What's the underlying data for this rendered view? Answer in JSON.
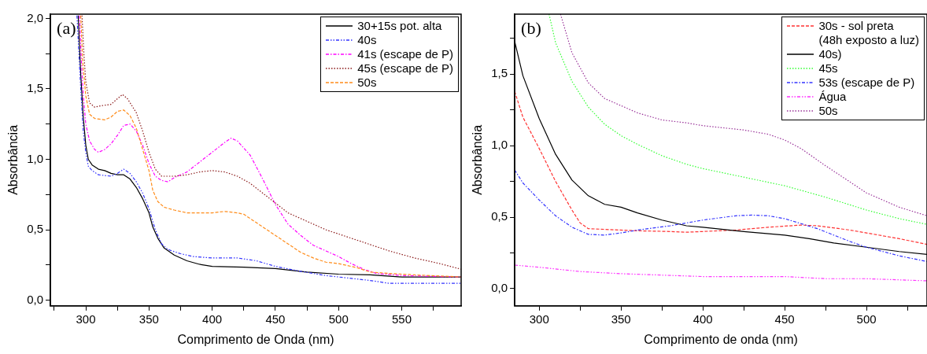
{
  "chart_data": [
    {
      "type": "line",
      "annotations": [
        "(a)"
      ],
      "xlabel": "Comprimento de Onda (nm)",
      "ylabel": "Absorbância",
      "xlim": [
        272,
        597
      ],
      "ylim": [
        -0.04,
        2.03
      ],
      "xticks": [
        {
          "value": 275,
          "label": null
        },
        300,
        {
          "value": 325,
          "label": null
        },
        350,
        {
          "value": 375,
          "label": null
        },
        400,
        {
          "value": 425,
          "label": null
        },
        450,
        {
          "value": 475,
          "label": null
        },
        500,
        {
          "value": 525,
          "label": null
        },
        550,
        {
          "value": 575,
          "label": null
        }
      ],
      "yticks": [
        {
          "value": 0,
          "label": "0,0"
        },
        {
          "value": 0.25,
          "label": null
        },
        {
          "value": 0.5,
          "label": "0,5"
        },
        {
          "value": 0.75,
          "label": null
        },
        {
          "value": 1,
          "label": "1,0"
        },
        {
          "value": 1.25,
          "label": null
        },
        {
          "value": 1.5,
          "label": "1,5"
        },
        {
          "value": 1.75,
          "label": null
        },
        {
          "value": 2,
          "label": "2,0"
        }
      ],
      "grid": false,
      "legend": "top right",
      "marker": "none",
      "series": [
        {
          "name": "30+15s pot. alta",
          "color": "#000000",
          "line_style": "solid",
          "x": [
            294,
            296,
            298,
            300,
            302,
            305,
            310,
            315,
            320,
            325,
            330,
            335,
            340,
            345,
            350,
            353,
            357,
            362,
            370,
            380,
            390,
            400,
            425,
            450,
            475,
            500,
            525,
            550,
            597
          ],
          "values": [
            2.02,
            1.6,
            1.3,
            1.1,
            1.0,
            0.96,
            0.93,
            0.92,
            0.9,
            0.89,
            0.89,
            0.86,
            0.8,
            0.72,
            0.62,
            0.52,
            0.44,
            0.37,
            0.32,
            0.28,
            0.255,
            0.24,
            0.235,
            0.225,
            0.2,
            0.185,
            0.18,
            0.165,
            0.165
          ]
        },
        {
          "name": "40s",
          "color": "#3333ff",
          "line_style": "dashdotdot",
          "x": [
            293,
            296,
            298,
            300,
            302,
            305,
            310,
            320,
            325,
            330,
            335,
            340,
            345,
            350,
            355,
            360,
            365,
            375,
            385,
            400,
            420,
            435,
            450,
            470,
            490,
            500,
            525,
            540,
            597
          ],
          "values": [
            2.02,
            1.5,
            1.2,
            1.05,
            0.95,
            0.92,
            0.89,
            0.88,
            0.9,
            0.93,
            0.9,
            0.84,
            0.76,
            0.65,
            0.5,
            0.4,
            0.36,
            0.33,
            0.31,
            0.3,
            0.3,
            0.28,
            0.24,
            0.205,
            0.175,
            0.165,
            0.14,
            0.12,
            0.12
          ]
        },
        {
          "name": "41s (escape de P)",
          "color": "#ff00ff",
          "line_style": "dashdot",
          "x": [
            295,
            296.5,
            298,
            300,
            303,
            307,
            310,
            315,
            320,
            325,
            330,
            335,
            340,
            345,
            350,
            355,
            360,
            365,
            370,
            380,
            390,
            400,
            410,
            415,
            420,
            430,
            440,
            450,
            460,
            470,
            480,
            490,
            500,
            510,
            520,
            530,
            550,
            570,
            597
          ],
          "values": [
            2.02,
            1.7,
            1.45,
            1.25,
            1.13,
            1.07,
            1.05,
            1.07,
            1.11,
            1.17,
            1.24,
            1.25,
            1.2,
            1.1,
            0.97,
            0.88,
            0.85,
            0.84,
            0.87,
            0.91,
            0.98,
            1.05,
            1.12,
            1.15,
            1.13,
            1.03,
            0.86,
            0.68,
            0.54,
            0.46,
            0.39,
            0.35,
            0.31,
            0.26,
            0.22,
            0.19,
            0.175,
            0.17,
            0.165
          ]
        },
        {
          "name": "45s (escape de P)",
          "color": "#8b1a1a",
          "line_style": "dotted",
          "x": [
            297,
            298.5,
            300,
            303,
            307,
            312,
            320,
            325,
            329,
            333,
            340,
            345,
            350,
            355,
            360,
            370,
            380,
            390,
            400,
            410,
            420,
            430,
            440,
            450,
            460,
            470,
            480,
            490,
            500,
            520,
            540,
            560,
            580,
            597
          ],
          "values": [
            2.02,
            1.75,
            1.55,
            1.4,
            1.37,
            1.38,
            1.39,
            1.43,
            1.46,
            1.43,
            1.33,
            1.2,
            1.05,
            0.93,
            0.88,
            0.88,
            0.89,
            0.91,
            0.92,
            0.91,
            0.88,
            0.83,
            0.76,
            0.69,
            0.62,
            0.58,
            0.54,
            0.5,
            0.47,
            0.41,
            0.35,
            0.3,
            0.26,
            0.22
          ]
        },
        {
          "name": "50s",
          "color": "#ff8c1a",
          "line_style": "dashed",
          "x": [
            296,
            297.5,
            300,
            303,
            307,
            315,
            320,
            325,
            330,
            335,
            340,
            345,
            350,
            353,
            357,
            362,
            370,
            380,
            400,
            410,
            420,
            425,
            435,
            450,
            460,
            470,
            480,
            490,
            500,
            515,
            525,
            540,
            560,
            597
          ],
          "values": [
            2.02,
            1.7,
            1.45,
            1.32,
            1.29,
            1.28,
            1.3,
            1.34,
            1.35,
            1.31,
            1.22,
            1.07,
            0.92,
            0.78,
            0.7,
            0.66,
            0.64,
            0.62,
            0.62,
            0.63,
            0.62,
            0.61,
            0.55,
            0.46,
            0.4,
            0.34,
            0.3,
            0.27,
            0.26,
            0.23,
            0.2,
            0.19,
            0.18,
            0.165
          ]
        }
      ]
    },
    {
      "type": "line",
      "annotations": [
        "(b)"
      ],
      "xlabel": "Comprimento de onda (nm)",
      "ylabel": "Absorbância",
      "xlim": [
        285,
        537
      ],
      "ylim": [
        -0.12,
        1.92
      ],
      "xticks": [
        300,
        {
          "value": 325,
          "label": null
        },
        350,
        {
          "value": 375,
          "label": null
        },
        400,
        {
          "value": 425,
          "label": null
        },
        450,
        {
          "value": 475,
          "label": null
        },
        500,
        {
          "value": 525,
          "label": null
        }
      ],
      "yticks": [
        {
          "value": 0,
          "label": "0,0"
        },
        {
          "value": 0.25,
          "label": null
        },
        {
          "value": 0.5,
          "label": "0,5"
        },
        {
          "value": 0.75,
          "label": null
        },
        {
          "value": 1,
          "label": "1,0"
        },
        {
          "value": 1.25,
          "label": null
        },
        {
          "value": 1.5,
          "label": "1,5"
        },
        {
          "value": 1.75,
          "label": null
        }
      ],
      "grid": false,
      "legend": "top right",
      "marker": "none",
      "series": [
        {
          "name": "30s - sol preta\n(48h exposto a luz)",
          "color": "#ff3333",
          "line_style": "dashed",
          "x": [
            285,
            290,
            300,
            310,
            320,
            325,
            330,
            340,
            360,
            380,
            390,
            400,
            420,
            440,
            460,
            470,
            490,
            500,
            520,
            537
          ],
          "values": [
            1.38,
            1.2,
            0.98,
            0.75,
            0.55,
            0.46,
            0.42,
            0.415,
            0.405,
            0.4,
            0.395,
            0.4,
            0.41,
            0.43,
            0.445,
            0.44,
            0.41,
            0.39,
            0.35,
            0.31
          ]
        },
        {
          "name": "40s)",
          "color": "#000000",
          "line_style": "solid",
          "x": [
            285,
            290,
            300,
            310,
            320,
            330,
            340,
            350,
            360,
            375,
            390,
            400,
            425,
            450,
            465,
            480,
            500,
            520,
            537
          ],
          "values": [
            1.73,
            1.49,
            1.19,
            0.94,
            0.76,
            0.65,
            0.59,
            0.57,
            0.53,
            0.48,
            0.44,
            0.43,
            0.4,
            0.375,
            0.35,
            0.32,
            0.29,
            0.26,
            0.24
          ]
        },
        {
          "name": "45s",
          "color": "#33ff33",
          "line_style": "dotted",
          "x": [
            306,
            310,
            320,
            330,
            340,
            350,
            360,
            375,
            390,
            400,
            425,
            450,
            475,
            500,
            520,
            537
          ],
          "values": [
            1.92,
            1.72,
            1.45,
            1.27,
            1.15,
            1.07,
            1.01,
            0.93,
            0.87,
            0.84,
            0.78,
            0.72,
            0.64,
            0.55,
            0.49,
            0.45
          ]
        },
        {
          "name": "53s (escape de P)",
          "color": "#3333ff",
          "line_style": "dashdot",
          "x": [
            285,
            290,
            300,
            310,
            320,
            330,
            340,
            350,
            360,
            380,
            400,
            420,
            430,
            440,
            450,
            460,
            470,
            480,
            490,
            500,
            520,
            537
          ],
          "values": [
            0.83,
            0.74,
            0.62,
            0.51,
            0.43,
            0.38,
            0.375,
            0.39,
            0.41,
            0.44,
            0.48,
            0.51,
            0.515,
            0.51,
            0.49,
            0.455,
            0.42,
            0.375,
            0.33,
            0.29,
            0.23,
            0.19
          ]
        },
        {
          "name": "Água",
          "color": "#ff33ff",
          "line_style": "dashdotdot",
          "x": [
            285,
            300,
            325,
            350,
            375,
            400,
            450,
            475,
            500,
            537
          ],
          "values": [
            0.165,
            0.15,
            0.12,
            0.105,
            0.095,
            0.085,
            0.085,
            0.07,
            0.07,
            0.055
          ]
        },
        {
          "name": "50s",
          "color": "#993399",
          "line_style": "dotted",
          "x": [
            313,
            320,
            330,
            340,
            350,
            360,
            375,
            390,
            400,
            425,
            440,
            450,
            460,
            475,
            500,
            520,
            537
          ],
          "values": [
            1.92,
            1.65,
            1.44,
            1.33,
            1.28,
            1.23,
            1.18,
            1.16,
            1.14,
            1.11,
            1.08,
            1.04,
            0.98,
            0.86,
            0.67,
            0.57,
            0.51
          ]
        }
      ]
    }
  ]
}
